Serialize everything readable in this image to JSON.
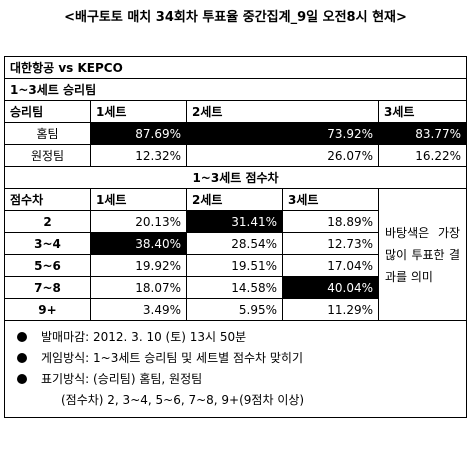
{
  "title": "<배구토토 매치 34회차 투표율 중간집계_9일 오전8시 현재>",
  "match": "대한항공 vs KEPCO",
  "winner_section": {
    "title": "1~3세트 승리팀",
    "headers": [
      "승리팀",
      "1세트",
      "2세트",
      "3세트"
    ],
    "rows": [
      {
        "label": "홈팀",
        "values": [
          "87.69%",
          "73.92%",
          "83.77%"
        ]
      },
      {
        "label": "원정팀",
        "values": [
          "12.32%",
          "26.07%",
          "16.22%"
        ]
      }
    ]
  },
  "diff_section": {
    "title": "1~3세트 점수차",
    "headers": [
      "점수차",
      "1세트",
      "2세트",
      "3세트"
    ],
    "rows": [
      {
        "label": "2",
        "values": [
          "20.13%",
          "31.41%",
          "18.89%"
        ]
      },
      {
        "label": "3~4",
        "values": [
          "38.40%",
          "28.54%",
          "12.73%"
        ]
      },
      {
        "label": "5~6",
        "values": [
          "19.92%",
          "19.51%",
          "17.04%"
        ]
      },
      {
        "label": "7~8",
        "values": [
          "18.07%",
          "14.58%",
          "40.04%"
        ]
      },
      {
        "label": "9+",
        "values": [
          "3.49%",
          "5.95%",
          "11.29%"
        ]
      }
    ],
    "note": "바탕색은 가장 많이 투표한 결과를 의미"
  },
  "notes": [
    "발매마감: 2012. 3. 10 (토) 13시 50분",
    "게임방식: 1~3세트 승리팀 및 세트별 점수차 맞히기",
    "표기방식: (승리팀) 홈팀, 원정팀",
    "(점수차) 2, 3~4, 5~6, 7~8, 9+(9점차 이상)"
  ],
  "colors": {
    "highlight": "#000000",
    "highlight_text": "#ffffff"
  }
}
